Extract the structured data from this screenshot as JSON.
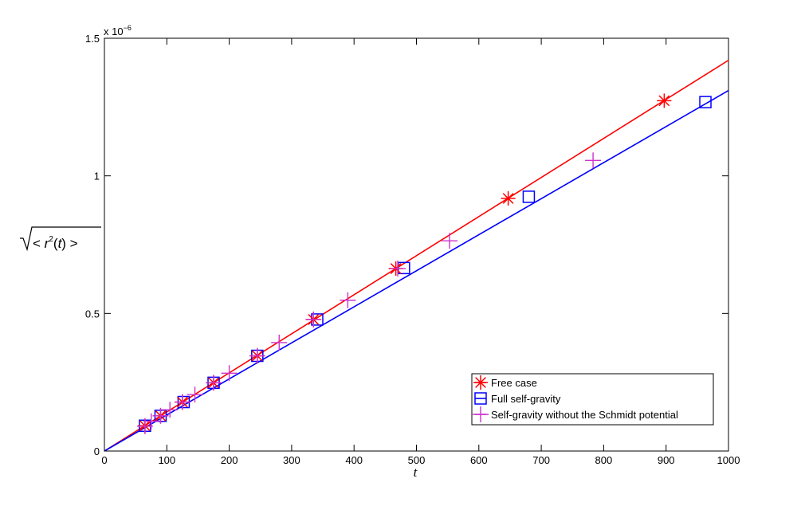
{
  "chart_data": {
    "type": "line",
    "xlabel": "t",
    "ylabel": "√< r²(t) >",
    "xlim": [
      0,
      1000
    ],
    "ylim": [
      0,
      1.5
    ],
    "y_exponent_label": "x 10",
    "y_exponent_power": "−6",
    "x_ticks": [
      "0",
      "100",
      "200",
      "300",
      "400",
      "500",
      "600",
      "700",
      "800",
      "900",
      "1000"
    ],
    "y_ticks": [
      "0",
      "0.5",
      "1",
      "1.5"
    ],
    "grid": false,
    "legend_position": "bottom-right",
    "series": [
      {
        "name": "Free case",
        "color": "#ff0000",
        "marker": "asterisk",
        "line": {
          "x": [
            0,
            1000
          ],
          "y": [
            0,
            1.42
          ]
        },
        "x": [
          65,
          90,
          125,
          175,
          245,
          335,
          467,
          647,
          897
        ],
        "y": [
          0.092,
          0.128,
          0.178,
          0.248,
          0.346,
          0.478,
          0.663,
          0.918,
          1.273
        ]
      },
      {
        "name": "Full self-gravity",
        "color": "#0000ff",
        "marker": "square",
        "line": {
          "x": [
            0,
            1000
          ],
          "y": [
            0,
            1.31
          ]
        },
        "x": [
          65,
          90,
          127,
          175,
          245,
          341,
          480,
          680,
          963
        ],
        "y": [
          0.092,
          0.128,
          0.178,
          0.248,
          0.346,
          0.478,
          0.665,
          0.924,
          1.268
        ]
      },
      {
        "name": "Self-gravity without the Schmidt potential",
        "color": "#cc33cc",
        "marker": "plus",
        "x": [
          65,
          75,
          90,
          105,
          125,
          145,
          175,
          200,
          245,
          280,
          335,
          390,
          470,
          553,
          783
        ],
        "y": [
          0.09,
          0.108,
          0.128,
          0.15,
          0.178,
          0.205,
          0.248,
          0.283,
          0.346,
          0.394,
          0.478,
          0.548,
          0.663,
          0.764,
          1.056
        ]
      }
    ]
  }
}
